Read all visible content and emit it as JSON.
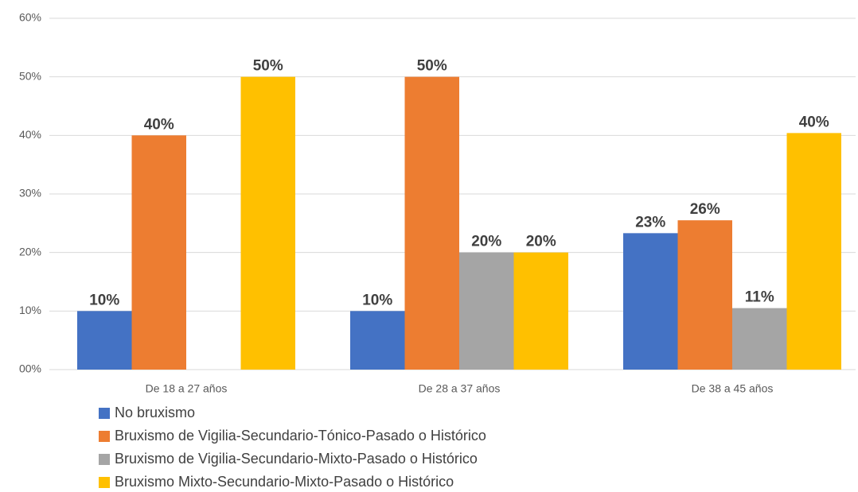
{
  "chart_data": {
    "type": "bar",
    "categories": [
      "De 18 a 27 años",
      "De 28 a 37 años",
      "De 38 a 45 años"
    ],
    "series": [
      {
        "name": "No bruxismo",
        "color": "#4472c4",
        "values": [
          10,
          10,
          23.3
        ],
        "value_labels": [
          "10%",
          "10%",
          "23%"
        ]
      },
      {
        "name": "Bruxismo de Vigilia-Secundario-Tónico-Pasado o Histórico",
        "color": "#ed7d31",
        "values": [
          40,
          50,
          25.5
        ],
        "value_labels": [
          "40%",
          "50%",
          "26%"
        ]
      },
      {
        "name": "Bruxismo de Vigilia-Secundario-Mixto-Pasado o Histórico",
        "color": "#a5a5a5",
        "values": [
          null,
          20,
          10.5
        ],
        "value_labels": [
          null,
          "20%",
          "11%"
        ]
      },
      {
        "name": "Bruxismo Mixto-Secundario-Mixto-Pasado o Histórico",
        "color": "#ffc000",
        "values": [
          50,
          20,
          40.4
        ],
        "value_labels": [
          "50%",
          "20%",
          "40%"
        ]
      }
    ],
    "ylim": [
      0,
      60
    ],
    "yticks": [
      {
        "value": 0,
        "label": "00%"
      },
      {
        "value": 10,
        "label": "10%"
      },
      {
        "value": 20,
        "label": "20%"
      },
      {
        "value": 30,
        "label": "30%"
      },
      {
        "value": 40,
        "label": "40%"
      },
      {
        "value": 50,
        "label": "50%"
      },
      {
        "value": 60,
        "label": "60%"
      }
    ],
    "grid": true,
    "legend": "bottom"
  }
}
